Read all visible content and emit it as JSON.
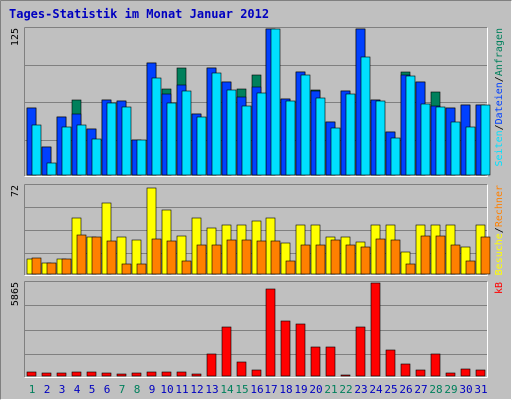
{
  "title": "Tages-Statistik im Monat Januar 2012",
  "colors": {
    "background": "#c0c0c0",
    "frame": "#808080",
    "title": "#0000c0",
    "grid": "#808080",
    "anfragen": "#00805c",
    "dateien": "#0040ff",
    "seiten": "#00e0ff",
    "besuche": "#ffff00",
    "rechner": "#ff8000",
    "kb": "#ff0000",
    "weekend_day": "#00805c",
    "weekday": "#0000c0"
  },
  "chart_data": [
    {
      "type": "bar",
      "ymax_label": "125",
      "ylim": [
        0,
        125
      ],
      "legend": [
        {
          "label": "Anfragen",
          "color": "#00805c"
        },
        {
          "label": "Dateien",
          "color": "#0040ff"
        },
        {
          "label": "Seiten",
          "color": "#00e0ff"
        }
      ],
      "legend_separator": "/",
      "categories": [
        "1",
        "2",
        "3",
        "4",
        "5",
        "6",
        "7",
        "8",
        "9",
        "10",
        "11",
        "12",
        "13",
        "14",
        "15",
        "16",
        "17",
        "18",
        "19",
        "20",
        "21",
        "22",
        "23",
        "24",
        "25",
        "26",
        "27",
        "28",
        "29",
        "30",
        "31"
      ],
      "series": [
        {
          "name": "Anfragen",
          "values": [
            57,
            24,
            50,
            64,
            39,
            64,
            63,
            30,
            96,
            74,
            92,
            52,
            92,
            80,
            74,
            86,
            125,
            65,
            88,
            73,
            45,
            72,
            125,
            64,
            37,
            88,
            80,
            71,
            57,
            60,
            60
          ]
        },
        {
          "name": "Dateien",
          "values": [
            57,
            24,
            50,
            52,
            39,
            64,
            63,
            30,
            96,
            69,
            77,
            52,
            92,
            80,
            67,
            75,
            125,
            65,
            88,
            72,
            45,
            72,
            125,
            64,
            37,
            86,
            80,
            59,
            57,
            60,
            60
          ]
        },
        {
          "name": "Seiten",
          "values": [
            43,
            10,
            41,
            43,
            31,
            62,
            58,
            30,
            83,
            62,
            72,
            50,
            87,
            73,
            59,
            70,
            125,
            63,
            86,
            66,
            40,
            69,
            101,
            63,
            32,
            85,
            61,
            58,
            45,
            41,
            60
          ]
        }
      ]
    },
    {
      "type": "bar",
      "ymax_label": "72",
      "ylim": [
        0,
        72
      ],
      "legend": [
        {
          "label": "Rechner",
          "color": "#ff8000"
        },
        {
          "label": "Besuche",
          "color": "#ffff00"
        }
      ],
      "legend_separator": "/",
      "categories": [
        "1",
        "2",
        "3",
        "4",
        "5",
        "6",
        "7",
        "8",
        "9",
        "10",
        "11",
        "12",
        "13",
        "14",
        "15",
        "16",
        "17",
        "18",
        "19",
        "20",
        "21",
        "22",
        "23",
        "24",
        "25",
        "26",
        "27",
        "28",
        "29",
        "30",
        "31"
      ],
      "series": [
        {
          "name": "Besuche",
          "values": [
            12,
            9,
            12,
            46,
            30,
            58,
            30,
            28,
            70,
            52,
            31,
            46,
            38,
            40,
            40,
            43,
            46,
            25,
            40,
            40,
            30,
            30,
            26,
            40,
            40,
            18,
            40,
            40,
            40,
            22,
            40
          ]
        },
        {
          "name": "Rechner",
          "values": [
            13,
            9,
            12,
            32,
            30,
            27,
            8,
            8,
            29,
            27,
            11,
            24,
            24,
            28,
            28,
            27,
            27,
            11,
            24,
            24,
            28,
            24,
            22,
            29,
            28,
            8,
            31,
            31,
            24,
            11,
            30
          ]
        }
      ]
    },
    {
      "type": "bar",
      "ymax_label": "5865",
      "ylim": [
        0,
        5865
      ],
      "legend": [
        {
          "label": "kB",
          "color": "#ff0000"
        }
      ],
      "legend_separator": "",
      "categories": [
        "1",
        "2",
        "3",
        "4",
        "5",
        "6",
        "7",
        "8",
        "9",
        "10",
        "11",
        "12",
        "13",
        "14",
        "15",
        "16",
        "17",
        "18",
        "19",
        "20",
        "21",
        "22",
        "23",
        "24",
        "25",
        "26",
        "27",
        "28",
        "29",
        "30",
        "31"
      ],
      "series": [
        {
          "name": "kB",
          "values": [
            250,
            190,
            200,
            250,
            230,
            200,
            150,
            190,
            240,
            250,
            250,
            120,
            1400,
            3100,
            860,
            380,
            5500,
            3450,
            3300,
            1850,
            1800,
            70,
            3100,
            5865,
            1650,
            730,
            380,
            1400,
            200,
            430,
            400
          ]
        }
      ],
      "x_labels": [
        "1",
        "2",
        "3",
        "4",
        "5",
        "6",
        "7",
        "8",
        "9",
        "10",
        "11",
        "12",
        "13",
        "14",
        "15",
        "16",
        "17",
        "18",
        "19",
        "20",
        "21",
        "22",
        "23",
        "24",
        "25",
        "26",
        "27",
        "28",
        "29",
        "30",
        "31"
      ],
      "weekend_days": [
        1,
        7,
        8,
        14,
        15,
        21,
        22,
        28,
        29
      ]
    }
  ]
}
